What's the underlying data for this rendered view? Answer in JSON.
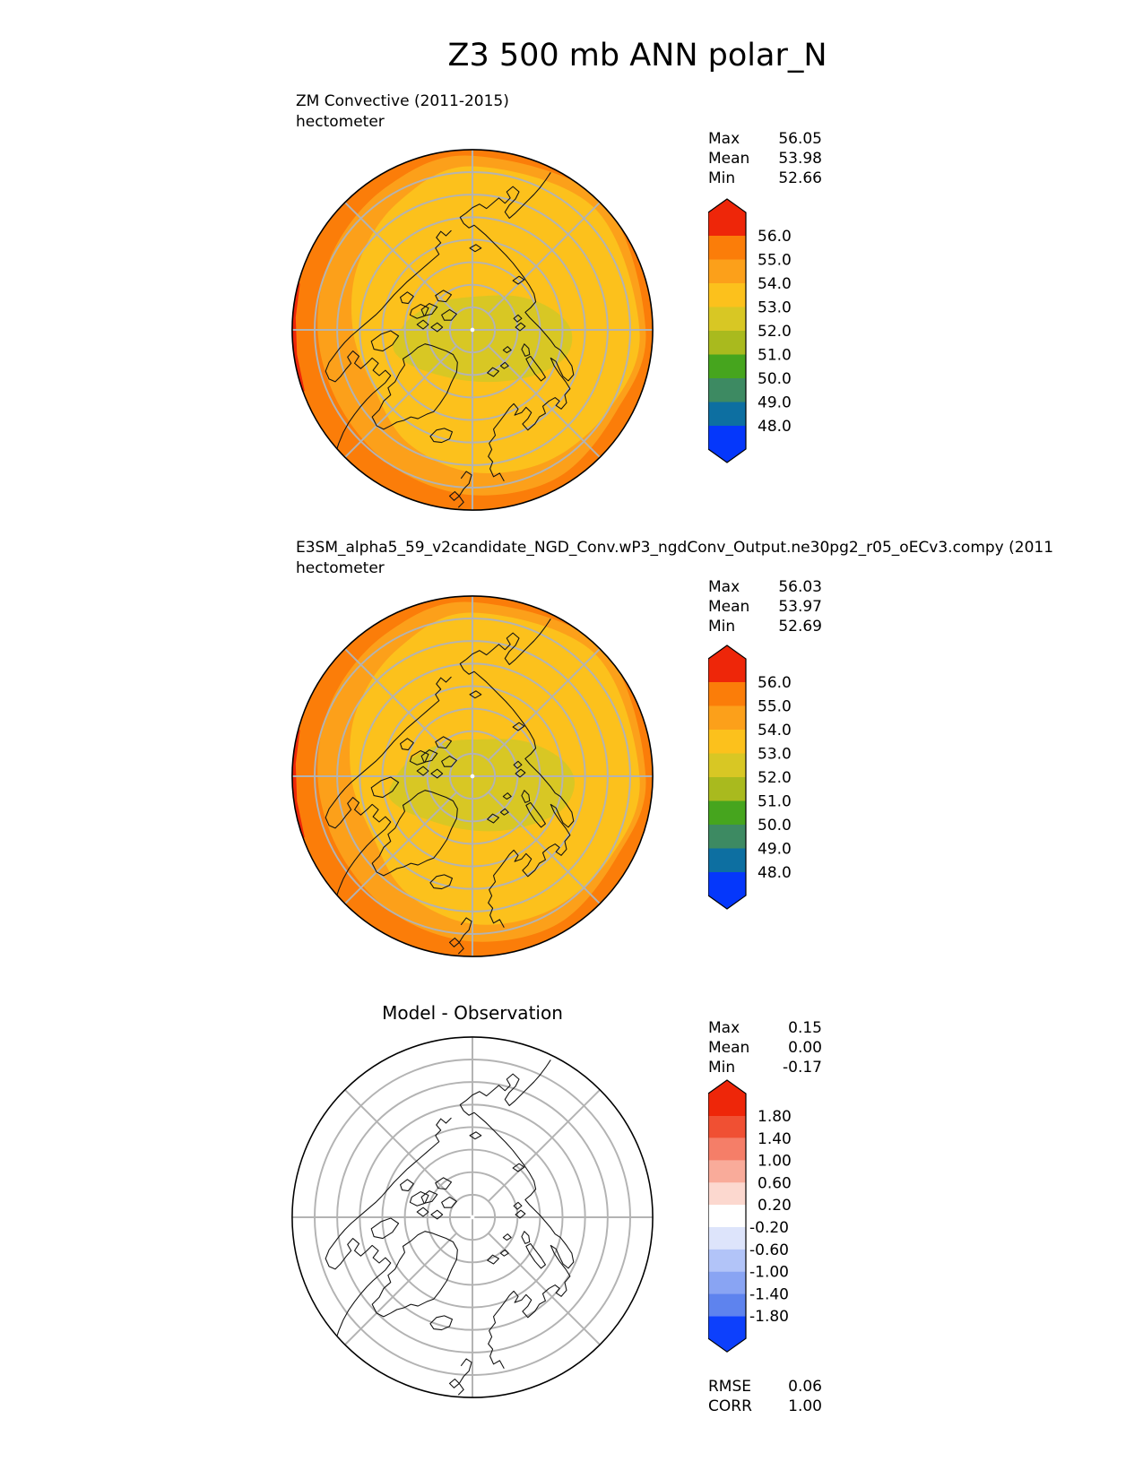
{
  "title": "Z3 500 mb ANN polar_N",
  "panels": [
    {
      "name": "reference",
      "label_line1": "ZM Convective (2011-2015)",
      "label_line2": "hectometer",
      "stats": [
        {
          "label": "Max",
          "value": "56.05"
        },
        {
          "label": "Mean",
          "value": "53.98"
        },
        {
          "label": "Min",
          "value": "52.66"
        }
      ]
    },
    {
      "name": "model",
      "label_line1": "E3SM_alpha5_59_v2candidate_NGD_Conv.wP3_ngdConv_Output.ne30pg2_r05_oECv3.compy (2011",
      "label_line2": "hectometer",
      "stats": [
        {
          "label": "Max",
          "value": "56.03"
        },
        {
          "label": "Mean",
          "value": "53.97"
        },
        {
          "label": "Min",
          "value": "52.69"
        }
      ]
    },
    {
      "name": "difference",
      "title": "Model - Observation",
      "stats": [
        {
          "label": "Max",
          "value": "0.15"
        },
        {
          "label": "Mean",
          "value": "0.00"
        },
        {
          "label": "Min",
          "value": "-0.17"
        }
      ],
      "metrics": [
        {
          "label": "RMSE",
          "value": "0.06"
        },
        {
          "label": "CORR",
          "value": "1.00"
        }
      ]
    }
  ],
  "colors": {
    "graticule": "#b3b3b3",
    "coastline": "#111111",
    "outline": "#000000",
    "pole_dot": "#ffffff"
  },
  "chart_data": [
    {
      "type": "heatmap",
      "panel": "reference",
      "title": "ZM Convective (2011-2015)",
      "units": "hectometer",
      "projection": "north polar stereographic",
      "stats": {
        "max": 56.05,
        "mean": 53.98,
        "min": 52.66
      },
      "colorbar": {
        "levels": [
          48.0,
          49.0,
          50.0,
          51.0,
          52.0,
          53.0,
          54.0,
          55.0,
          56.0
        ],
        "tick_labels": [
          "56.0",
          "55.0",
          "54.0",
          "53.0",
          "52.0",
          "51.0",
          "50.0",
          "49.0",
          "48.0"
        ],
        "colors_top_to_bottom": [
          "#ee2609",
          "#fb7d09",
          "#fca01a",
          "#fcc11c",
          "#d8c724",
          "#a9ba1e",
          "#46a51e",
          "#3d8a62",
          "#0d6fa1",
          "#0537fb"
        ],
        "extend": "both"
      },
      "map_colors": {
        "over_56": "#ee2609",
        "band_55_56": "#fb7d09",
        "band_54_55": "#fca01a",
        "band_53_54": "#fcc11c",
        "band_52_53": "#d8c724"
      }
    },
    {
      "type": "heatmap",
      "panel": "model",
      "title": "E3SM_alpha5_59_v2candidate_NGD_Conv.wP3_ngdConv_Output.ne30pg2_r05_oECv3.compy (2011",
      "units": "hectometer",
      "projection": "north polar stereographic",
      "stats": {
        "max": 56.03,
        "mean": 53.97,
        "min": 52.69
      },
      "colorbar": {
        "levels": [
          48.0,
          49.0,
          50.0,
          51.0,
          52.0,
          53.0,
          54.0,
          55.0,
          56.0
        ],
        "tick_labels": [
          "56.0",
          "55.0",
          "54.0",
          "53.0",
          "52.0",
          "51.0",
          "50.0",
          "49.0",
          "48.0"
        ],
        "colors_top_to_bottom": [
          "#ee2609",
          "#fb7d09",
          "#fca01a",
          "#fcc11c",
          "#d8c724",
          "#a9ba1e",
          "#46a51e",
          "#3d8a62",
          "#0d6fa1",
          "#0537fb"
        ],
        "extend": "both"
      },
      "map_colors": {
        "over_56": "#ee2609",
        "band_55_56": "#fb7d09",
        "band_54_55": "#fca01a",
        "band_53_54": "#fcc11c",
        "band_52_53": "#d8c724"
      }
    },
    {
      "type": "heatmap",
      "panel": "difference",
      "title": "Model - Observation",
      "projection": "north polar stereographic",
      "stats": {
        "max": 0.15,
        "mean": 0.0,
        "min": -0.17
      },
      "rmse": 0.06,
      "corr": 1.0,
      "colorbar": {
        "levels": [
          -1.8,
          -1.4,
          -1.0,
          -0.6,
          -0.2,
          0.2,
          0.6,
          1.0,
          1.4,
          1.8
        ],
        "tick_labels": [
          "1.80",
          "1.40",
          "1.00",
          "0.60",
          "0.20",
          "-0.20",
          "-0.60",
          "-1.00",
          "-1.40",
          "-1.80"
        ],
        "colors_top_to_bottom": [
          "#ee2609",
          "#f05033",
          "#f57e68",
          "#f9ab9a",
          "#fcd8cf",
          "#ffffff",
          "#dde4fb",
          "#b2c4f8",
          "#89a4f3",
          "#5e83ee",
          "#0d40fc"
        ],
        "extend": "both"
      },
      "map_colors": {
        "background": "#ffffff"
      }
    }
  ]
}
